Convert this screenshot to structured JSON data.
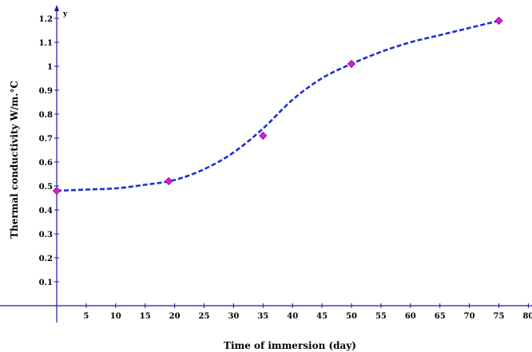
{
  "chart_data": {
    "type": "line",
    "xlabel": "Time of immersion (day)",
    "ylabel": "Thermal conductivity W/m.°C",
    "y_axis_letter": "y",
    "xlim": [
      0,
      80
    ],
    "ylim": [
      0,
      1.2
    ],
    "x_ticks": [
      5,
      10,
      15,
      20,
      25,
      30,
      35,
      40,
      45,
      50,
      55,
      60,
      65,
      70,
      75,
      80
    ],
    "x_tick_labels": [
      "5",
      "10",
      "15",
      "20",
      "25",
      "30",
      "35",
      "40",
      "45",
      "50",
      "55",
      "60",
      "65",
      "70",
      "75",
      "80"
    ],
    "y_ticks": [
      0.1,
      0.2,
      0.3,
      0.4,
      0.5,
      0.6,
      0.7,
      0.8,
      0.9,
      1,
      1.1,
      1.2
    ],
    "y_tick_labels": [
      "0.1",
      "0.2",
      "0.3",
      "0.4",
      "0.5",
      "0.6",
      "0.7",
      "0.8",
      "0.9",
      "1",
      "1.1",
      "1.2"
    ],
    "grid": false,
    "series": [
      {
        "markers": {
          "x": [
            0,
            19,
            35,
            50,
            75
          ],
          "y": [
            0.48,
            0.52,
            0.71,
            1.01,
            1.19
          ]
        },
        "curve": {
          "x": [
            0,
            5,
            10,
            15,
            20,
            25,
            30,
            35,
            40,
            45,
            50,
            55,
            60,
            65,
            70,
            75
          ],
          "y": [
            0.48,
            0.485,
            0.49,
            0.505,
            0.525,
            0.57,
            0.64,
            0.74,
            0.86,
            0.95,
            1.01,
            1.06,
            1.1,
            1.13,
            1.16,
            1.19
          ]
        }
      }
    ],
    "colors": {
      "line": "#1f2fd6",
      "marker_fill": "#e01ad6",
      "marker_stroke": "#7a0a78",
      "axis": "#1a1aa8"
    }
  }
}
